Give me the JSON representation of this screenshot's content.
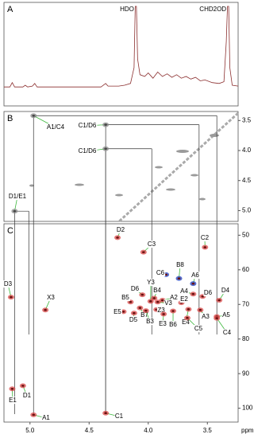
{
  "chart_data": [
    {
      "type": "line",
      "panel": "A",
      "color": "#8b2e2e",
      "xlim": [
        5.22,
        3.24
      ],
      "x": [
        5.22,
        5.17,
        5.15,
        5.13,
        5.06,
        5.04,
        5.02,
        4.98,
        4.96,
        4.94,
        4.8,
        4.6,
        4.4,
        4.36,
        4.34,
        4.25,
        4.2,
        4.15,
        4.12,
        4.11,
        4.1,
        4.09,
        4.07,
        4.03,
        4.0,
        3.96,
        3.92,
        3.88,
        3.84,
        3.8,
        3.76,
        3.72,
        3.68,
        3.64,
        3.6,
        3.56,
        3.52,
        3.46,
        3.4,
        3.36,
        3.34,
        3.33,
        3.32,
        3.31,
        3.29,
        3.24
      ],
      "values": [
        8,
        8,
        13,
        8,
        8,
        10,
        8,
        9,
        12,
        8,
        8,
        8,
        8,
        12,
        9,
        9,
        10,
        12,
        30,
        100,
        100,
        40,
        22,
        20,
        24,
        18,
        25,
        20,
        23,
        19,
        22,
        18,
        20,
        17,
        19,
        15,
        16,
        13,
        12,
        14,
        60,
        100,
        100,
        30,
        10,
        9
      ],
      "annotations": [
        {
          "text": "HDO",
          "x": 4.1
        },
        {
          "text": "CHD2OD",
          "x": 3.32
        }
      ]
    },
    {
      "type": "scatter",
      "panel": "B",
      "color": "#8a8a8a",
      "xlim": [
        5.22,
        3.24
      ],
      "ylim": [
        3.35,
        5.18
      ],
      "yticks": [
        3.5,
        {
          "value": 4,
          "label": "4.0"
        },
        4.5,
        {
          "value": 5,
          "label": "5.0"
        }
      ],
      "peaks": [
        {
          "label": "A1/C4",
          "x": 4.97,
          "y": 3.42
        },
        {
          "label": "C1/D6",
          "x": 4.36,
          "y": 3.57
        },
        {
          "label": "C1/D6",
          "x": 4.36,
          "y": 3.97
        },
        {
          "label": "D1/E1",
          "x": 5.13,
          "y": 5.01
        }
      ]
    },
    {
      "type": "scatter",
      "panel": "C",
      "color": "#d94a4a",
      "xlim": [
        5.22,
        3.24
      ],
      "ylim": [
        46.7,
        104
      ],
      "yticks": [
        50,
        60,
        70,
        80,
        90,
        100
      ],
      "xticks": [
        {
          "value": 5,
          "label": "5.0"
        },
        4.5,
        {
          "value": 4,
          "label": "4.0"
        },
        3.5
      ],
      "xlabel": "ppm",
      "peaks": [
        {
          "label": "D2",
          "x": 4.26,
          "y": 50.7
        },
        {
          "label": "C2",
          "x": 3.52,
          "y": 53.5
        },
        {
          "label": "C3",
          "x": 4.04,
          "y": 54.9
        },
        {
          "label": "B8",
          "x": 3.74,
          "y": 62.5,
          "color": "#1f3fbf"
        },
        {
          "label": "C6",
          "x": 3.85,
          "y": 61.4,
          "color": "#1f3fbf"
        },
        {
          "label": "A6",
          "x": 3.62,
          "y": 64.0,
          "color": "#1f3fbf"
        },
        {
          "label": "D6",
          "x": 4.05,
          "y": 67.2
        },
        {
          "label": "A4",
          "x": 3.62,
          "y": 67.0
        },
        {
          "label": "D6",
          "x": 3.54,
          "y": 67.7
        },
        {
          "label": "D4",
          "x": 3.4,
          "y": 68.8
        },
        {
          "label": "Y3",
          "x": 3.98,
          "y": 69.1
        },
        {
          "label": "B4",
          "x": 3.95,
          "y": 68.2
        },
        {
          "label": "A2",
          "x": 3.88,
          "y": 68.8
        },
        {
          "label": "E2",
          "x": 3.72,
          "y": 69.5
        },
        {
          "label": "V3",
          "x": 3.92,
          "y": 69.3
        },
        {
          "label": "B5",
          "x": 4.15,
          "y": 69.3
        },
        {
          "label": "D3",
          "x": 5.16,
          "y": 67.9
        },
        {
          "label": "X3",
          "x": 4.87,
          "y": 71.6
        },
        {
          "label": "E5",
          "x": 4.21,
          "y": 72.1
        },
        {
          "label": "D5",
          "x": 4.12,
          "y": 72.5
        },
        {
          "label": "B7",
          "x": 4.07,
          "y": 71.0
        },
        {
          "label": "B3",
          "x": 4.02,
          "y": 71.8
        },
        {
          "label": "Z3",
          "x": 3.93,
          "y": 71.5
        },
        {
          "label": "E3",
          "x": 3.87,
          "y": 72.8
        },
        {
          "label": "B6",
          "x": 3.79,
          "y": 71.9
        },
        {
          "label": "E4",
          "x": 3.66,
          "y": 71.4
        },
        {
          "label": "A3",
          "x": 3.56,
          "y": 71.6
        },
        {
          "label": "C5",
          "x": 3.67,
          "y": 73.9
        },
        {
          "label": "A5",
          "x": 3.42,
          "y": 73.5
        },
        {
          "label": "C4",
          "x": 3.42,
          "y": 74.0
        },
        {
          "label": "E1",
          "x": 5.15,
          "y": 94.4
        },
        {
          "label": "D1",
          "x": 5.06,
          "y": 93.5
        },
        {
          "label": "A1",
          "x": 4.97,
          "y": 101.9
        },
        {
          "label": "C1",
          "x": 4.36,
          "y": 101.4
        }
      ]
    }
  ]
}
